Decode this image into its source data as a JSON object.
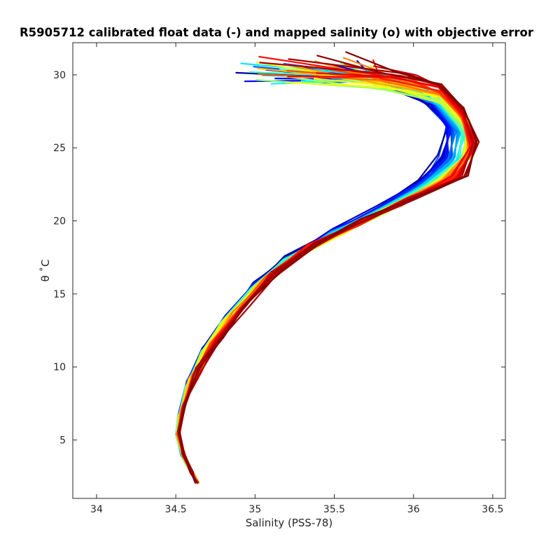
{
  "chart_data": {
    "type": "line",
    "title": "R5905712 calibrated float data (-) and mapped salinity (o) with objective error",
    "xlabel": "Salinity (PSS-78)",
    "ylabel": "θ ˚C",
    "xlim": [
      33.85,
      36.58
    ],
    "ylim": [
      1.0,
      32.2
    ],
    "xticks": [
      34,
      34.5,
      35,
      35.5,
      36,
      36.5
    ],
    "xtick_labels": [
      "34",
      "34.5",
      "35",
      "35.5",
      "36",
      "36.5"
    ],
    "yticks": [
      5,
      10,
      15,
      20,
      25,
      30
    ],
    "ytick_labels": [
      "5",
      "10",
      "15",
      "20",
      "25",
      "30"
    ],
    "grid": false,
    "legend": "none",
    "colormap": "jet (profile index, first = dark blue, last = dark red)",
    "profile_count": 60,
    "representative_profiles": [
      {
        "name": "early (blue)",
        "color": "#0050ff",
        "points": [
          [
            35.3,
            30.3
          ],
          [
            35.8,
            29.6
          ],
          [
            36.1,
            28.0
          ],
          [
            36.2,
            26.5
          ],
          [
            36.17,
            24.5
          ],
          [
            36.05,
            22.8
          ],
          [
            35.8,
            21.0
          ],
          [
            35.5,
            19.4
          ],
          [
            35.2,
            17.5
          ],
          [
            35.0,
            15.7
          ],
          [
            34.83,
            13.5
          ],
          [
            34.69,
            11.3
          ],
          [
            34.6,
            9.2
          ],
          [
            34.53,
            7.0
          ],
          [
            34.51,
            5.5
          ],
          [
            34.54,
            4.0
          ],
          [
            34.6,
            2.8
          ],
          [
            34.63,
            2.1
          ]
        ]
      },
      {
        "name": "middle (cyan-yellow)",
        "color": "#40ffbf",
        "points": [
          [
            35.5,
            30.0
          ],
          [
            35.9,
            29.3
          ],
          [
            36.2,
            28.0
          ],
          [
            36.35,
            26.0
          ],
          [
            36.32,
            24.0
          ],
          [
            36.1,
            22.3
          ],
          [
            35.8,
            20.6
          ],
          [
            35.5,
            19.0
          ],
          [
            35.2,
            17.2
          ],
          [
            35.0,
            15.3
          ],
          [
            34.8,
            13.0
          ],
          [
            34.67,
            10.8
          ],
          [
            34.58,
            8.6
          ],
          [
            34.52,
            6.5
          ],
          [
            34.51,
            5.2
          ],
          [
            34.55,
            3.8
          ],
          [
            34.61,
            2.6
          ],
          [
            34.64,
            2.1
          ]
        ]
      },
      {
        "name": "late (red)",
        "color": "#d20000",
        "points": [
          [
            35.4,
            30.8
          ],
          [
            35.9,
            30.2
          ],
          [
            36.15,
            29.4
          ],
          [
            36.3,
            27.8
          ],
          [
            36.4,
            25.5
          ],
          [
            36.32,
            23.2
          ],
          [
            36.0,
            21.6
          ],
          [
            35.7,
            20.1
          ],
          [
            35.4,
            18.6
          ],
          [
            35.15,
            16.6
          ],
          [
            34.96,
            14.4
          ],
          [
            34.78,
            12.1
          ],
          [
            34.65,
            9.9
          ],
          [
            34.56,
            7.6
          ],
          [
            34.52,
            5.6
          ],
          [
            34.55,
            4.0
          ],
          [
            34.6,
            2.8
          ],
          [
            34.63,
            2.1
          ]
        ]
      }
    ]
  }
}
